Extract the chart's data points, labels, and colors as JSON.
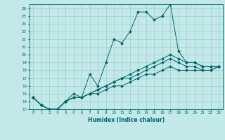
{
  "title": "",
  "xlabel": "Humidex (Indice chaleur)",
  "ylabel": "",
  "background_color": "#c2e8e8",
  "grid_color": "#9ecece",
  "line_color": "#006868",
  "xlim": [
    -0.5,
    23.5
  ],
  "ylim": [
    13,
    26.5
  ],
  "xticks": [
    0,
    1,
    2,
    3,
    4,
    5,
    6,
    7,
    8,
    9,
    10,
    11,
    12,
    13,
    14,
    15,
    16,
    17,
    18,
    19,
    20,
    21,
    22,
    23
  ],
  "yticks": [
    13,
    14,
    15,
    16,
    17,
    18,
    19,
    20,
    21,
    22,
    23,
    24,
    25,
    26
  ],
  "series": [
    [
      14.5,
      13.5,
      13.0,
      13.0,
      14.0,
      15.0,
      14.5,
      17.5,
      16.0,
      19.0,
      22.0,
      21.5,
      23.0,
      25.5,
      25.5,
      24.5,
      25.0,
      26.5,
      20.5,
      19.0,
      19.0,
      18.5,
      18.5,
      18.5
    ],
    [
      14.5,
      13.5,
      13.0,
      13.0,
      14.0,
      14.5,
      14.5,
      15.0,
      15.5,
      16.0,
      16.5,
      17.0,
      17.5,
      18.0,
      18.5,
      19.0,
      19.5,
      20.0,
      19.5,
      19.0,
      19.0,
      18.5,
      18.5,
      18.5
    ],
    [
      14.5,
      13.5,
      13.0,
      13.0,
      14.0,
      14.5,
      14.5,
      15.0,
      15.5,
      16.0,
      16.5,
      17.0,
      17.0,
      17.5,
      18.0,
      18.5,
      19.0,
      19.5,
      19.0,
      18.5,
      18.5,
      18.0,
      18.0,
      18.5
    ],
    [
      14.5,
      13.5,
      13.0,
      13.0,
      14.0,
      14.5,
      14.5,
      15.0,
      15.0,
      15.5,
      16.0,
      16.0,
      16.5,
      17.0,
      17.5,
      17.5,
      18.0,
      18.5,
      18.0,
      18.0,
      18.0,
      18.0,
      18.0,
      18.5
    ]
  ]
}
